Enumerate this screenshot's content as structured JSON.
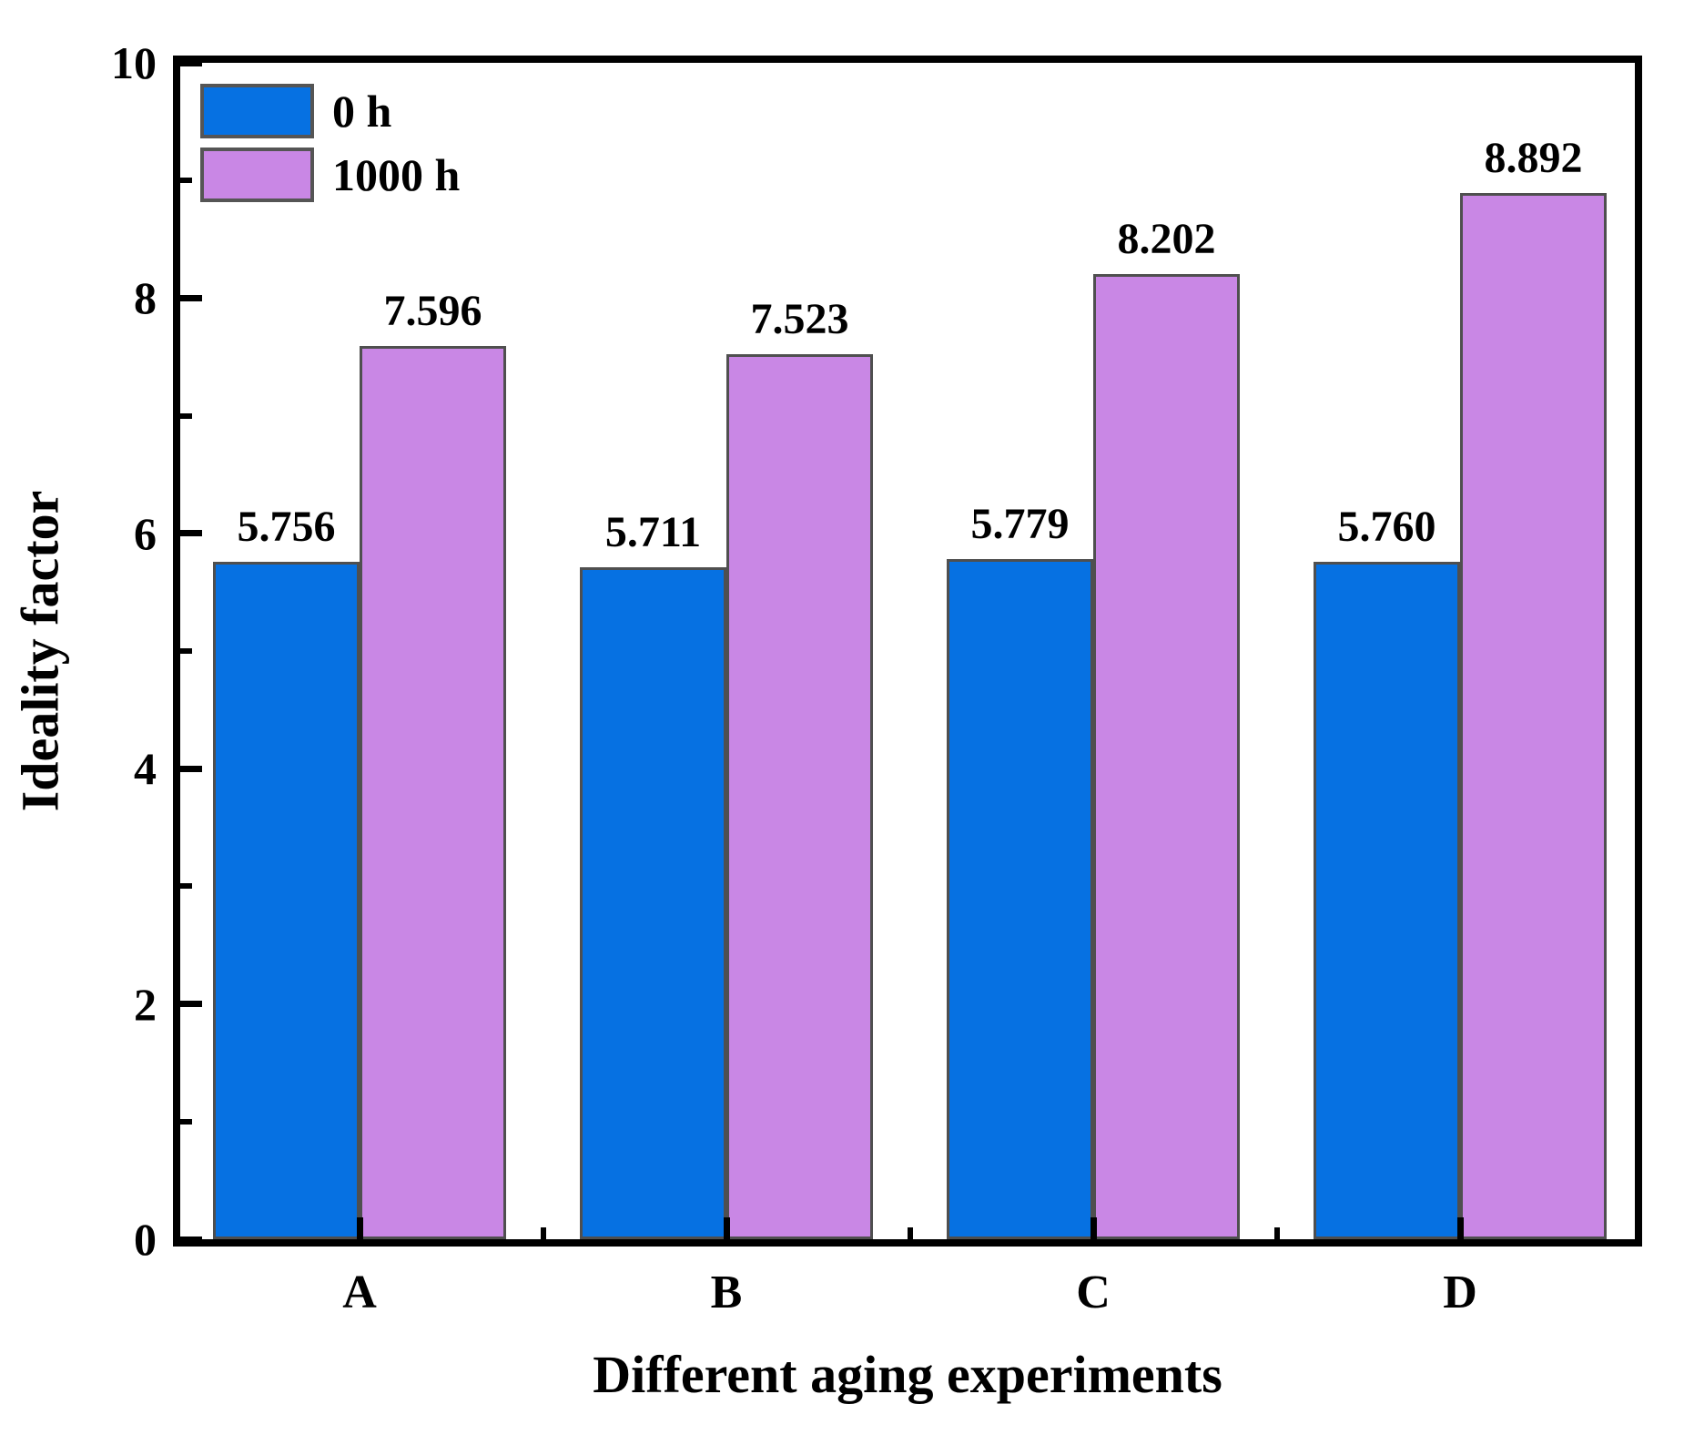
{
  "chart_data": {
    "type": "bar",
    "title": "",
    "xlabel": "Different aging experiments",
    "ylabel": "Ideality factor",
    "categories": [
      "A",
      "B",
      "C",
      "D"
    ],
    "series": [
      {
        "name": "0 h",
        "color": "#0671e2",
        "values": [
          5.756,
          5.711,
          5.779,
          5.76
        ],
        "labels": [
          "5.756",
          "5.711",
          "5.779",
          "5.760"
        ]
      },
      {
        "name": "1000 h",
        "color": "#c987e5",
        "values": [
          7.596,
          7.523,
          8.202,
          8.892
        ],
        "labels": [
          "7.596",
          "7.523",
          "8.202",
          "8.892"
        ]
      }
    ],
    "ylim": [
      0,
      10
    ],
    "yticks": [
      "0",
      "2",
      "4",
      "6",
      "8",
      "10"
    ],
    "minor_yticks": [
      1,
      3,
      5,
      7,
      9
    ],
    "grid": false,
    "legend_position": "top-left",
    "bar_border_color": "#4f4f4f",
    "legend_border_color": "#555555",
    "axis_color": "#000000",
    "background_color": "#ffffff"
  }
}
